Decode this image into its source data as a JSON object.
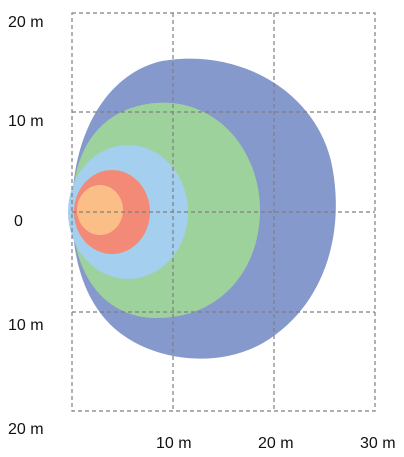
{
  "y_axis": {
    "labels": [
      "20 m",
      "10 m",
      "0",
      "10 m",
      "20 m"
    ]
  },
  "x_axis": {
    "labels": [
      "10 m",
      "20 m",
      "30 m"
    ]
  },
  "zones": [
    {
      "color": "#8599cc"
    },
    {
      "color": "#9dd29c"
    },
    {
      "color": "#a5cfef"
    },
    {
      "color": "#f38a78"
    },
    {
      "color": "#fbbe86"
    }
  ],
  "grid_color": "#7f7f7f"
}
